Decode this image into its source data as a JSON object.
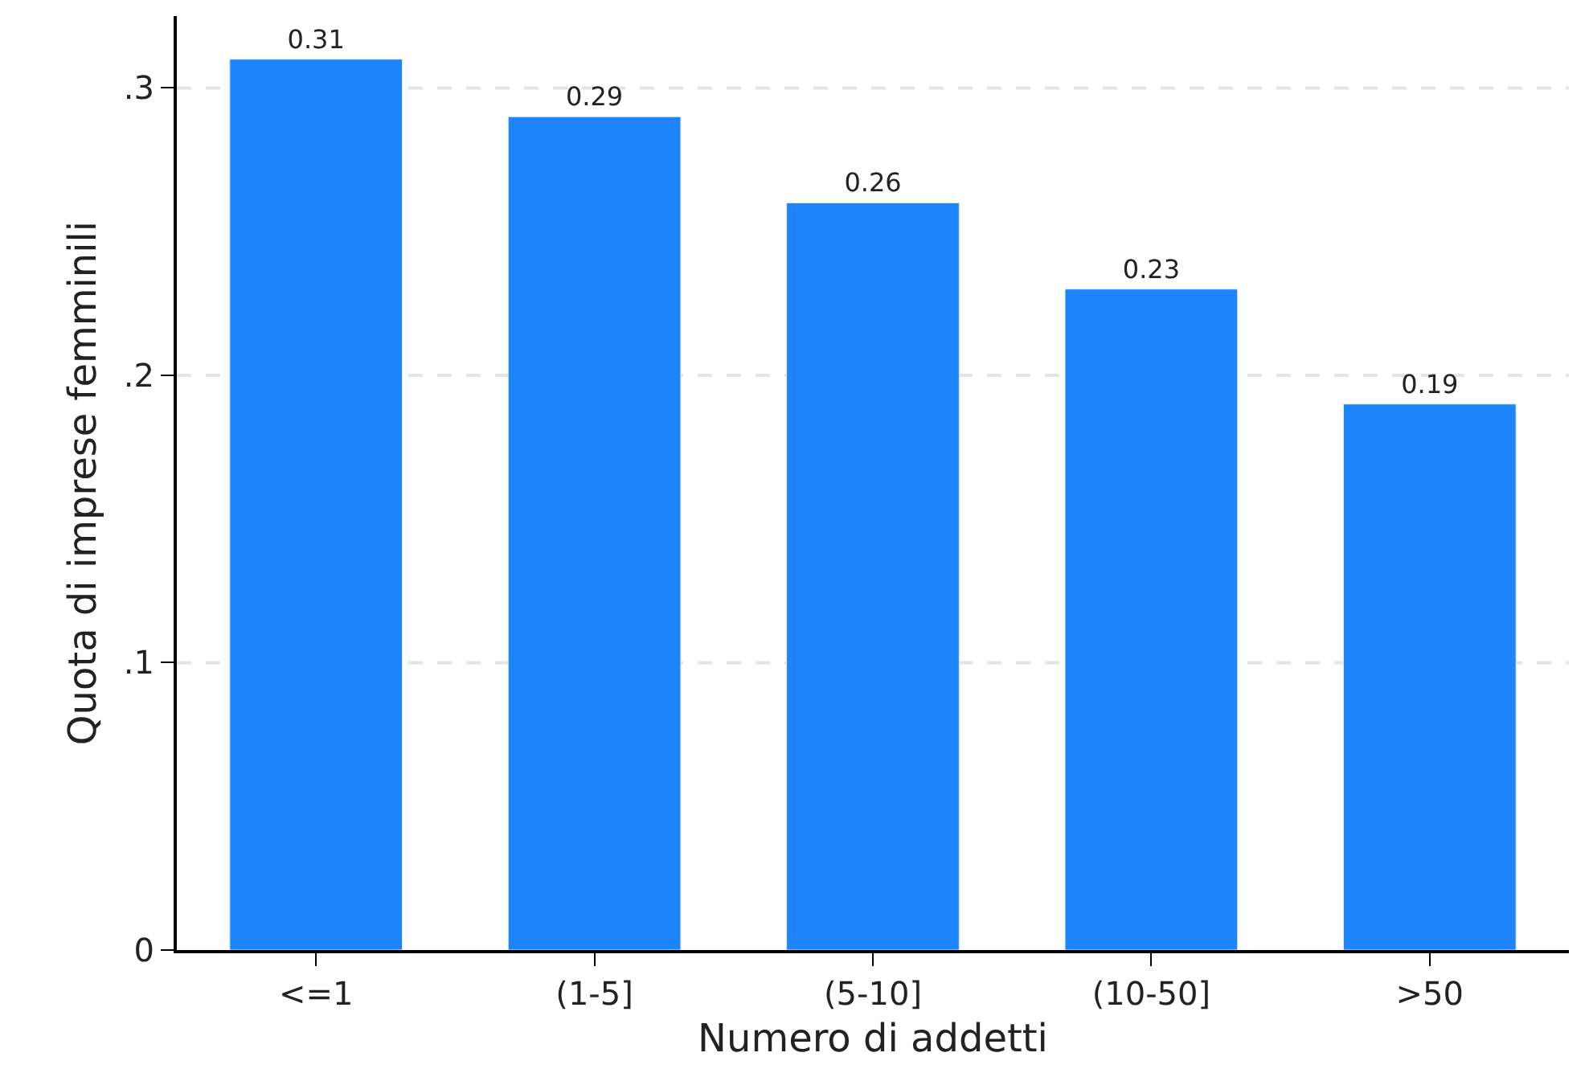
{
  "chart_data": {
    "type": "bar",
    "xlabel": "Numero di addetti",
    "ylabel": "Quota di imprese femminili",
    "categories": [
      "<=1",
      "(1-5]",
      "(5-10]",
      "(10-50]",
      ">50"
    ],
    "values": [
      0.31,
      0.29,
      0.26,
      0.23,
      0.19
    ],
    "color": "#1e84fc",
    "ylim": [
      0,
      0.325
    ],
    "yticks": [
      {
        "value": 0,
        "label": "0"
      },
      {
        "value": 0.1,
        "label": ".1"
      },
      {
        "value": 0.2,
        "label": ".2"
      },
      {
        "value": 0.3,
        "label": ".3"
      }
    ],
    "grid": "y",
    "data_labels": true,
    "legend": false
  }
}
